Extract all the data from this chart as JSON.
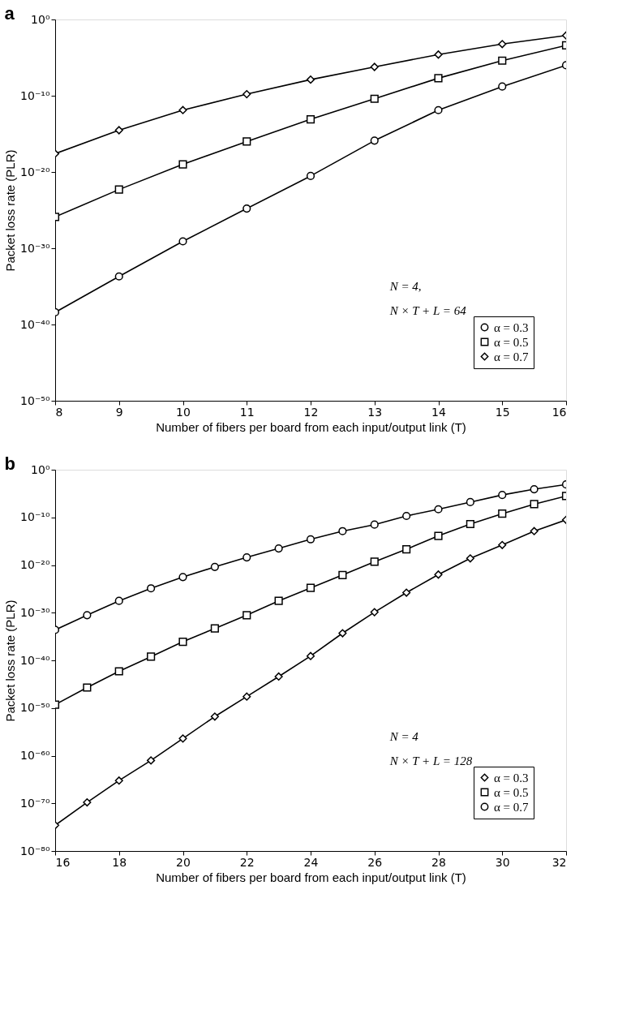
{
  "chart_data": [
    {
      "type": "line",
      "title": "a",
      "xlabel": "Number of fibers per board from each input/output link (T)",
      "ylabel": "Packet loss rate (PLR)",
      "log": "y",
      "grid": false,
      "legend": "bottom right",
      "xlim": [
        8,
        16
      ],
      "xticks": [
        8,
        9,
        10,
        11,
        12,
        13,
        14,
        15,
        16
      ],
      "ylim": [
        1e-50,
        1
      ],
      "yticks": [
        {
          "value": 1e-50,
          "label": "10⁻⁵⁰"
        },
        {
          "value": 1e-40,
          "label": "10⁻⁴⁰"
        },
        {
          "value": 1e-30,
          "label": "10⁻³⁰"
        },
        {
          "value": 1e-20,
          "label": "10⁻²⁰"
        },
        {
          "value": 1e-10,
          "label": "10⁻¹⁰"
        },
        {
          "value": 1,
          "label": "10⁰"
        }
      ],
      "x": [
        8,
        9,
        10,
        11,
        12,
        13,
        14,
        15,
        16
      ],
      "annotations": [
        "N = 4,",
        "N × T + L = 64"
      ],
      "series": [
        {
          "name": "α = 0.3",
          "color": "#000000",
          "marker": "circle",
          "values": [
            4e-39,
            2e-34,
            8e-30,
            1.6e-25,
            3e-21,
            1.3e-16,
            1.3e-12,
            1.6e-09,
            1e-06
          ]
        },
        {
          "name": "α = 0.5",
          "color": "#000000",
          "marker": "square",
          "values": [
            1.3e-26,
            5e-23,
            1e-19,
            1e-16,
            8e-14,
            4e-11,
            2e-08,
            4e-06,
            0.0004
          ]
        },
        {
          "name": "α = 0.7",
          "color": "#000000",
          "marker": "diamond",
          "values": [
            2.5e-18,
            3e-15,
            1.3e-12,
            1.6e-10,
            1.3e-08,
            6e-07,
            2.5e-05,
            0.0006,
            0.008
          ]
        }
      ]
    },
    {
      "type": "line",
      "title": "b",
      "xlabel": "Number of fibers per board from each input/output link (T)",
      "ylabel": "Packet loss rate (PLR)",
      "log": "y",
      "grid": false,
      "legend": "bottom right",
      "xlim": [
        16,
        32
      ],
      "xticks": [
        16,
        18,
        20,
        22,
        24,
        26,
        28,
        30,
        32
      ],
      "ylim": [
        1e-80,
        1
      ],
      "yticks": [
        {
          "value": 1e-80,
          "label": "10⁻⁸⁰"
        },
        {
          "value": 1e-70,
          "label": "10⁻⁷⁰"
        },
        {
          "value": 1e-60,
          "label": "10⁻⁶⁰"
        },
        {
          "value": 1e-50,
          "label": "10⁻⁵⁰"
        },
        {
          "value": 1e-40,
          "label": "10⁻⁴⁰"
        },
        {
          "value": 1e-30,
          "label": "10⁻³⁰"
        },
        {
          "value": 1e-20,
          "label": "10⁻²⁰"
        },
        {
          "value": 1e-10,
          "label": "10⁻¹⁰"
        },
        {
          "value": 1,
          "label": "10⁰"
        }
      ],
      "x": [
        16,
        17,
        18,
        19,
        20,
        21,
        22,
        23,
        24,
        25,
        26,
        27,
        28,
        29,
        30,
        31,
        32
      ],
      "annotations": [
        "N = 4",
        "N × T + L = 128"
      ],
      "series": [
        {
          "name": "α = 0.3",
          "color": "#000000",
          "marker": "diamond",
          "values": [
            2.5e-75,
            1.6e-70,
            6e-66,
            1e-61,
            4e-57,
            1.6e-52,
            2.5e-48,
            4e-44,
            8e-40,
            5e-35,
            1.3e-30,
            1.6e-26,
            1e-22,
            2.5e-19,
            1.6e-16,
            1.3e-13,
            3e-11
          ]
        },
        {
          "name": "α = 0.5",
          "color": "#000000",
          "marker": "square",
          "values": [
            5e-50,
            2e-46,
            5e-43,
            6e-40,
            8e-37,
            5e-34,
            3e-31,
            3e-28,
            1.6e-25,
            8e-23,
            5e-20,
            2e-17,
            1.3e-14,
            4e-12,
            6e-10,
            6e-08,
            3e-06
          ]
        },
        {
          "name": "α = 0.7",
          "color": "#000000",
          "marker": "circle",
          "values": [
            2.5e-34,
            3e-31,
            3e-28,
            1.3e-25,
            3e-23,
            4e-21,
            4e-19,
            3e-17,
            2.5e-15,
            1.3e-13,
            3e-12,
            2e-10,
            5e-09,
            1.6e-07,
            5e-06,
            8e-05,
            0.0008
          ]
        }
      ]
    }
  ]
}
